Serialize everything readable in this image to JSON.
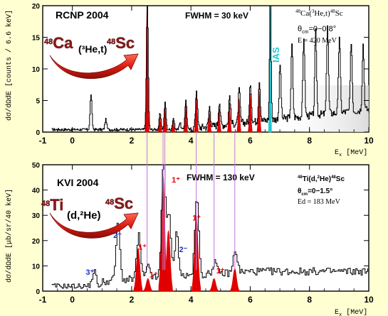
{
  "chart_data": [
    {
      "type": "line",
      "panel": "top",
      "title": "RCNP 2004",
      "fwhm": "FWHM = 30 keV",
      "reaction": "48Ca(3He,t)48Sc",
      "reaction_parts": {
        "pre1": "48",
        "t1": "Ca(",
        "pre2": "3",
        "t2": "He,t)",
        "pre3": "48",
        "t3": "Sc"
      },
      "theta": "θcm=0−0.8°",
      "theta_parts": {
        "sym": "θ",
        "sub": "cm",
        "range": "=0−0.8°"
      },
      "energy": "E = 420 MeV",
      "ias_label": "IAS",
      "arrow_label": {
        "from_mass": "48",
        "from": "Ca",
        "mid": "(³He,t)",
        "to_mass": "48",
        "to": "Sc"
      },
      "ylabel": "dσ/dΩdE [counts / 6.6 keV]",
      "xlabel": "Ex [MeV]",
      "xlim": [
        -1,
        10
      ],
      "ylim": [
        0,
        20
      ],
      "xticks": [
        -1,
        0,
        2,
        4,
        6,
        8,
        10
      ],
      "yticks": [
        0,
        5,
        10,
        15,
        20
      ],
      "peaks": [
        {
          "x": 0.62,
          "y": 5.6,
          "filled": false
        },
        {
          "x": 1.12,
          "y": 1.6,
          "filled": false
        },
        {
          "x": 2.52,
          "y": 20,
          "filled": true
        },
        {
          "x": 2.95,
          "y": 2.5,
          "filled": true
        },
        {
          "x": 3.12,
          "y": 4.2,
          "filled": true
        },
        {
          "x": 3.4,
          "y": 1.8,
          "filled": true
        },
        {
          "x": 3.62,
          "y": 1.1,
          "filled": false
        },
        {
          "x": 3.82,
          "y": 4.6,
          "filled": true
        },
        {
          "x": 4.18,
          "y": 6.1,
          "filled": true
        },
        {
          "x": 4.62,
          "y": 3.1,
          "filled": true
        },
        {
          "x": 4.95,
          "y": 3.8,
          "filled": true
        },
        {
          "x": 5.3,
          "y": 4.6,
          "filled": true
        },
        {
          "x": 5.62,
          "y": 5.3,
          "filled": true
        },
        {
          "x": 6.0,
          "y": 6.1,
          "filled": true
        },
        {
          "x": 6.3,
          "y": 6.6,
          "filled": true
        },
        {
          "x": 6.67,
          "y": 20,
          "filled": false,
          "ias": true
        },
        {
          "x": 7.0,
          "y": 8.6,
          "filled": false
        },
        {
          "x": 7.4,
          "y": 11.5,
          "filled": false
        },
        {
          "x": 7.8,
          "y": 12.6,
          "filled": false
        },
        {
          "x": 8.2,
          "y": 13.1,
          "filled": false
        },
        {
          "x": 8.6,
          "y": 14.2,
          "filled": false
        },
        {
          "x": 9.0,
          "y": 12.2,
          "filled": false
        },
        {
          "x": 9.4,
          "y": 11.1,
          "filled": false
        },
        {
          "x": 9.8,
          "y": 10.4,
          "filled": false
        }
      ]
    },
    {
      "type": "line",
      "panel": "bottom",
      "title": "KVI 2004",
      "fwhm": "FWHM = 130 keV",
      "reaction": "48Ti(d,2He)48Sc",
      "reaction_parts": {
        "pre1": "48",
        "t1": "Ti(d,",
        "pre2": "2",
        "t2": "He)",
        "pre3": "48",
        "t3": "Sc"
      },
      "theta": "θcm=0−1.5°",
      "theta_parts": {
        "sym": "θ",
        "sub": "cm",
        "range": "=0−1.5°"
      },
      "energy": "Ed = 183 MeV",
      "arrow_label": {
        "from_mass": "48",
        "from": "Ti",
        "mid": "(d,²He)",
        "to_mass": "48",
        "to": "Sc"
      },
      "ylabel": "dσ/dΩdE [μb/sr/40 keV]",
      "xlabel": "Ex [MeV]",
      "xlim": [
        -1,
        10
      ],
      "ylim": [
        0,
        50
      ],
      "xticks": [
        -1,
        0,
        2,
        4,
        6,
        8,
        10
      ],
      "yticks": [
        0,
        10,
        20,
        30,
        40,
        50
      ],
      "peaks": [
        {
          "x": 0.72,
          "y": 6,
          "filled": false
        },
        {
          "x": 1.52,
          "y": 22,
          "filled": false
        },
        {
          "x": 2.22,
          "y": 17,
          "filled": true
        },
        {
          "x": 2.55,
          "y": 5,
          "filled": true
        },
        {
          "x": 3.06,
          "y": 46,
          "filled": true
        },
        {
          "x": 3.24,
          "y": 24,
          "filled": true
        },
        {
          "x": 3.5,
          "y": 17,
          "filled": false
        },
        {
          "x": 4.18,
          "y": 30,
          "filled": true
        },
        {
          "x": 4.78,
          "y": 5,
          "filled": true
        },
        {
          "x": 5.48,
          "y": 9,
          "filled": true
        }
      ],
      "spin_labels": [
        {
          "text": "3⁺",
          "x": 0.45,
          "y": 6.5,
          "color": "blue"
        },
        {
          "text": "2⁻",
          "x": 1.38,
          "y": 21,
          "color": "blue"
        },
        {
          "text": "1⁺",
          "x": 2.22,
          "y": 16.5,
          "color": "red"
        },
        {
          "text": "1⁺",
          "x": 2.6,
          "y": 5.5,
          "color": "red"
        },
        {
          "text": "1⁺",
          "x": 3.35,
          "y": 43,
          "color": "red"
        },
        {
          "text": "2⁻",
          "x": 3.6,
          "y": 15.5,
          "color": "blue"
        },
        {
          "text": "1⁺",
          "x": 4.05,
          "y": 28,
          "color": "red"
        },
        {
          "text": "1⁺",
          "x": 4.85,
          "y": 7,
          "color": "red"
        }
      ]
    }
  ],
  "connector_x": [
    2.52,
    3.06,
    3.12,
    4.18,
    4.78,
    5.48
  ],
  "colors": {
    "background": "#ffffd2",
    "fill": "#e00000",
    "ias": "#1ec8d2",
    "connector": "#c87ee0",
    "label_blue": "#1a2fd0",
    "label_red": "#e00000",
    "arrow": "#e01b12",
    "nucleus": "#8a1a1a"
  }
}
